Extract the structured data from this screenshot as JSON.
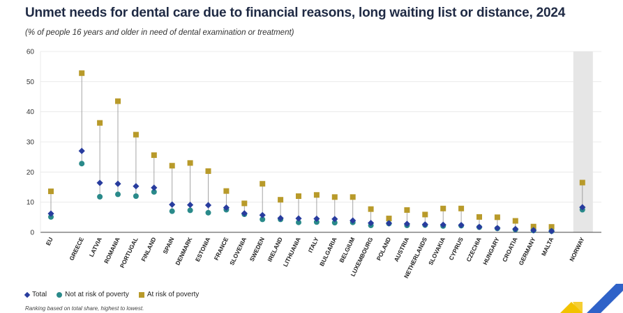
{
  "title": "Unmet needs for dental care due to financial reasons, long waiting list or distance, 2024",
  "subtitle": "(% of people 16 years and older in need of dental examination or treatment)",
  "legend": {
    "total": "Total",
    "not_risk": "Not at risk of poverty",
    "at_risk": "At risk of poverty"
  },
  "note": "Ranking based on total share, highest to lowest.",
  "colors": {
    "total": "#283c9e",
    "not_risk": "#2a8a8a",
    "at_risk": "#b89a2a",
    "line": "#9a9a9a",
    "grid": "#e6e6e6",
    "highlight": "#e6e6e6"
  },
  "chart_data": {
    "type": "dot-range",
    "ylim": [
      0,
      60
    ],
    "yticks": [
      0,
      10,
      20,
      30,
      40,
      50,
      60
    ],
    "categories": [
      "EU",
      "GREECE",
      "LATVIA",
      "ROMANIA",
      "PORTUGAL",
      "FINLAND",
      "SPAIN",
      "DENMARK",
      "ESTONIA",
      "FRANCE",
      "SLOVENIA",
      "SWEDEN",
      "IRELAND",
      "LITHUANIA",
      "ITALY",
      "BULGARIA",
      "BELGIUM",
      "LUXEMBOURG",
      "POLAND",
      "AUSTRIA",
      "NETHERLANDS",
      "SLOVAKIA",
      "CYPRUS",
      "CZECHIA",
      "HUNGARY",
      "CROATIA",
      "GERMANY",
      "MALTA",
      "NORWAY"
    ],
    "series": [
      {
        "name": "Total",
        "values": [
          6.2,
          27.0,
          16.4,
          16.1,
          15.3,
          14.8,
          9.2,
          9.1,
          9.0,
          8.2,
          6.3,
          5.7,
          4.7,
          4.6,
          4.5,
          4.4,
          3.9,
          3.1,
          3.0,
          2.8,
          2.6,
          2.5,
          2.4,
          1.8,
          1.4,
          1.1,
          0.7,
          0.4,
          8.3
        ]
      },
      {
        "name": "Not at risk of poverty",
        "values": [
          5.1,
          22.8,
          11.8,
          12.6,
          12.0,
          13.4,
          7.0,
          7.3,
          6.5,
          7.5,
          6.0,
          4.3,
          4.3,
          3.3,
          3.4,
          3.2,
          3.3,
          2.3,
          2.9,
          2.3,
          2.4,
          2.1,
          2.2,
          1.7,
          1.3,
          0.9,
          0.6,
          0.4,
          7.5
        ]
      },
      {
        "name": "At risk of poverty",
        "values": [
          13.6,
          52.8,
          36.3,
          43.5,
          32.4,
          25.6,
          22.1,
          23.0,
          20.3,
          13.7,
          9.6,
          16.1,
          10.8,
          12.0,
          12.4,
          11.7,
          11.7,
          7.7,
          4.6,
          7.4,
          5.9,
          7.9,
          7.9,
          5.1,
          5.0,
          3.8,
          1.9,
          1.8,
          16.5
        ]
      }
    ],
    "highlighted_categories": [
      "NORWAY"
    ]
  }
}
